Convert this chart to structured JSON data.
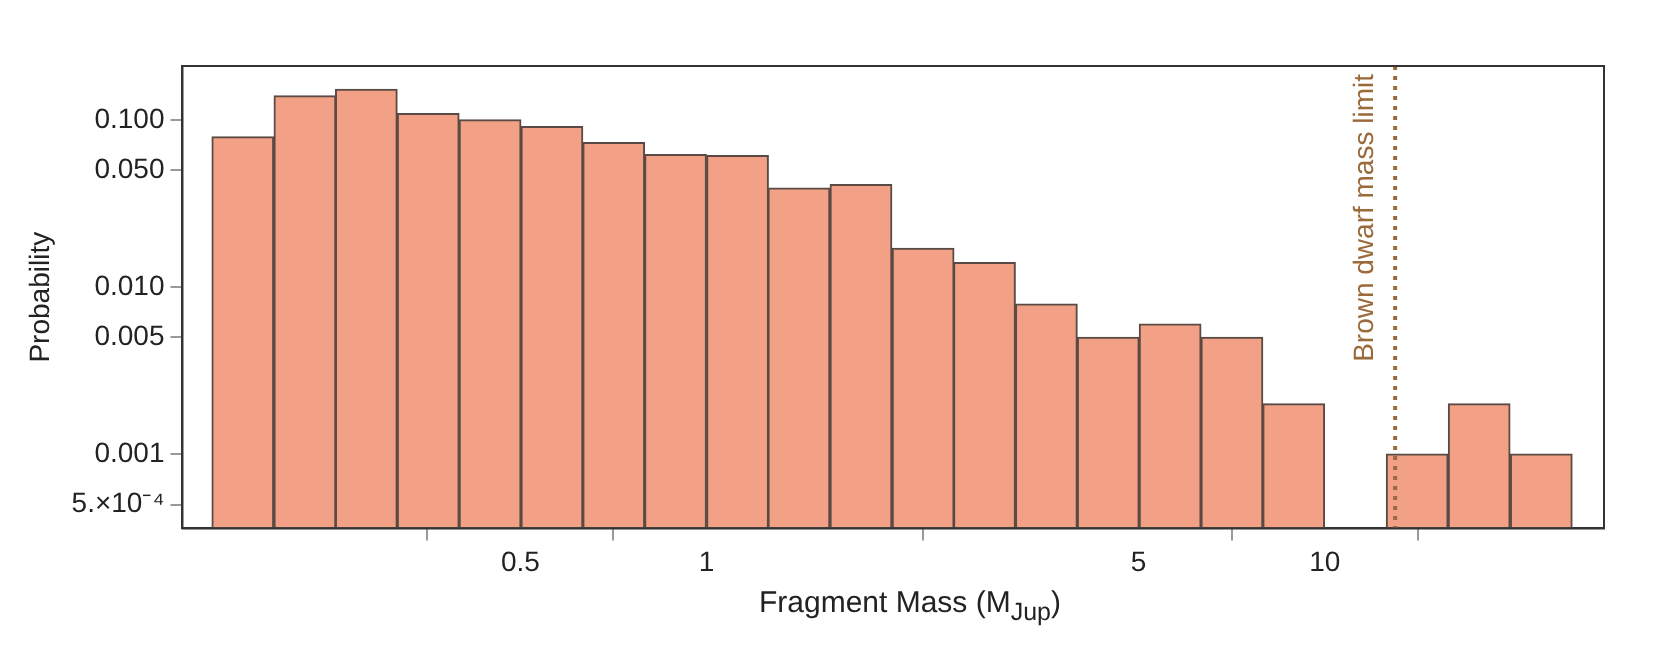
{
  "chart_data": {
    "type": "histogram",
    "xlabel": "Fragment Mass (M$_{Jup}$)",
    "ylabel": "Probability",
    "bins": [
      0.158,
      0.2,
      0.251,
      0.316,
      0.398,
      0.501,
      0.631,
      0.794,
      1,
      1.26,
      1.58,
      2,
      2.51,
      3.16,
      3.98,
      5.01,
      6.31,
      7.94,
      10,
      12.6,
      15.8,
      20,
      25.1
    ],
    "values": [
      0.079,
      0.139,
      0.152,
      0.109,
      0.1,
      0.091,
      0.073,
      0.062,
      0.061,
      0.039,
      0.041,
      0.017,
      0.014,
      0.0079,
      0.005,
      0.006,
      0.005,
      0.002,
      null,
      0.001,
      0.002,
      0.001
    ],
    "color": "#f2a186",
    "log": "xy",
    "xlim": [
      0.142,
      28.3
    ],
    "ylim": [
      0.00036,
      0.21
    ],
    "xticks": [
      0.5,
      1,
      5,
      10
    ],
    "yticks": [
      {
        "value": 0.0005,
        "label": "5.×10⁻⁴"
      },
      {
        "value": 0.001,
        "label": "0.001"
      },
      {
        "value": 0.005,
        "label": "0.005"
      },
      {
        "value": 0.01,
        "label": "0.010"
      },
      {
        "value": 0.05,
        "label": "0.050"
      },
      {
        "value": 0.1,
        "label": "0.100"
      }
    ],
    "ref_lines": [
      {
        "axis": "x",
        "value": 13,
        "label": "Brown dwarf mass limit",
        "color": "#9a6a3a",
        "line_style": "dotted"
      }
    ],
    "grid": false,
    "legend": false
  }
}
